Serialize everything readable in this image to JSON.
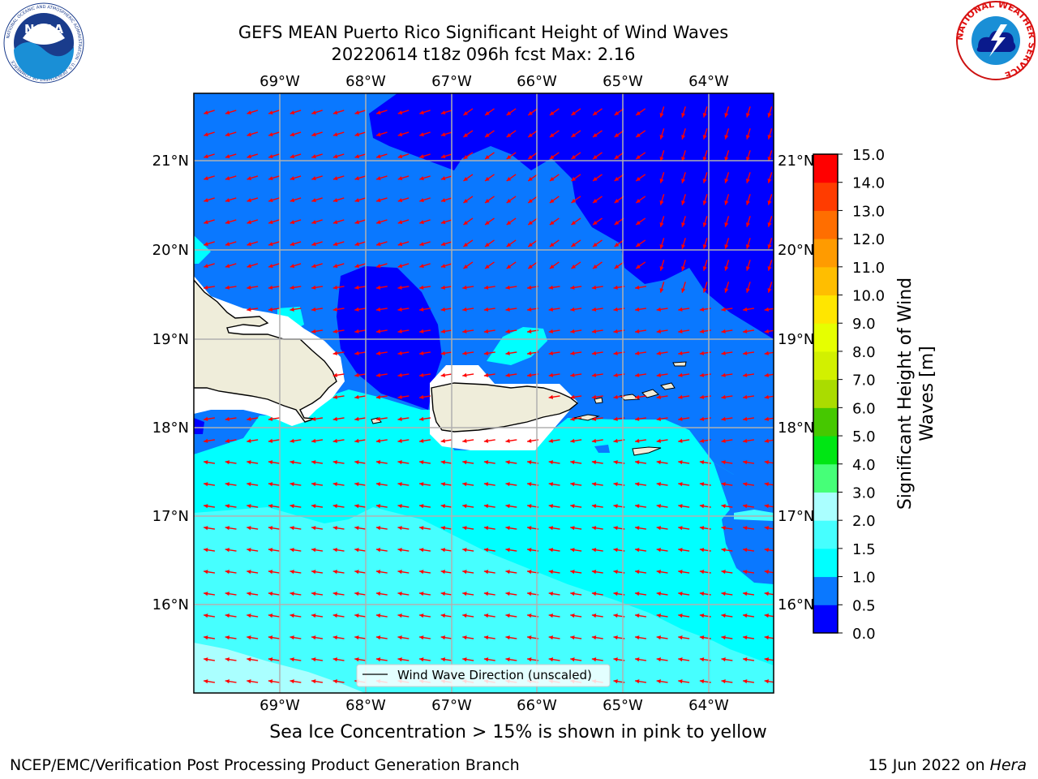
{
  "header": {
    "title_line1": "GEFS MEAN Puerto Rico Significant Height of Wind Waves",
    "title_line2": "20220614 t18z 096h fcst   Max: 2.16"
  },
  "logos": {
    "left": {
      "text": "NOAA",
      "ring_text": "NATIONAL OCEANIC AND ATMOSPHERIC ADMINISTRATION · U.S. DEPARTMENT OF COMMERCE"
    },
    "right": {
      "ring_text": "NATIONAL WEATHER SERVICE"
    }
  },
  "map": {
    "lon_labels": [
      "69°W",
      "68°W",
      "67°W",
      "66°W",
      "65°W",
      "64°W"
    ],
    "lat_labels": [
      "21°N",
      "20°N",
      "19°N",
      "18°N",
      "17°N",
      "16°N"
    ],
    "legend_label": "Wind Wave Direction (unscaled)",
    "land_color": "#efedda",
    "arrow_color": "#ff0000"
  },
  "colorbar": {
    "label_line1": "Significant Height of Wind",
    "label_line2": "Waves [m]",
    "ticks": [
      "0.0",
      "0.5",
      "1.0",
      "1.5",
      "2.0",
      "3.0",
      "4.0",
      "5.0",
      "6.0",
      "7.0",
      "8.0",
      "9.0",
      "10.0",
      "11.0",
      "12.0",
      "13.0",
      "14.0",
      "15.0"
    ],
    "colors": [
      "#0000ff",
      "#0a78ff",
      "#00ffff",
      "#46ffff",
      "#aaffff",
      "#46ff78",
      "#00e614",
      "#46c800",
      "#aadc00",
      "#d2f000",
      "#e6ff00",
      "#ffe600",
      "#ffbe00",
      "#ff9b00",
      "#ff6e00",
      "#ff3c00",
      "#ff0000"
    ]
  },
  "notes": {
    "ice": "Sea Ice Concentration > 15% is shown in pink to yellow",
    "footer_left": "NCEP/EMC/Verification Post Processing Product Generation Branch",
    "footer_right_prefix": "15 Jun 2022 on ",
    "footer_right_host": "Hera"
  }
}
